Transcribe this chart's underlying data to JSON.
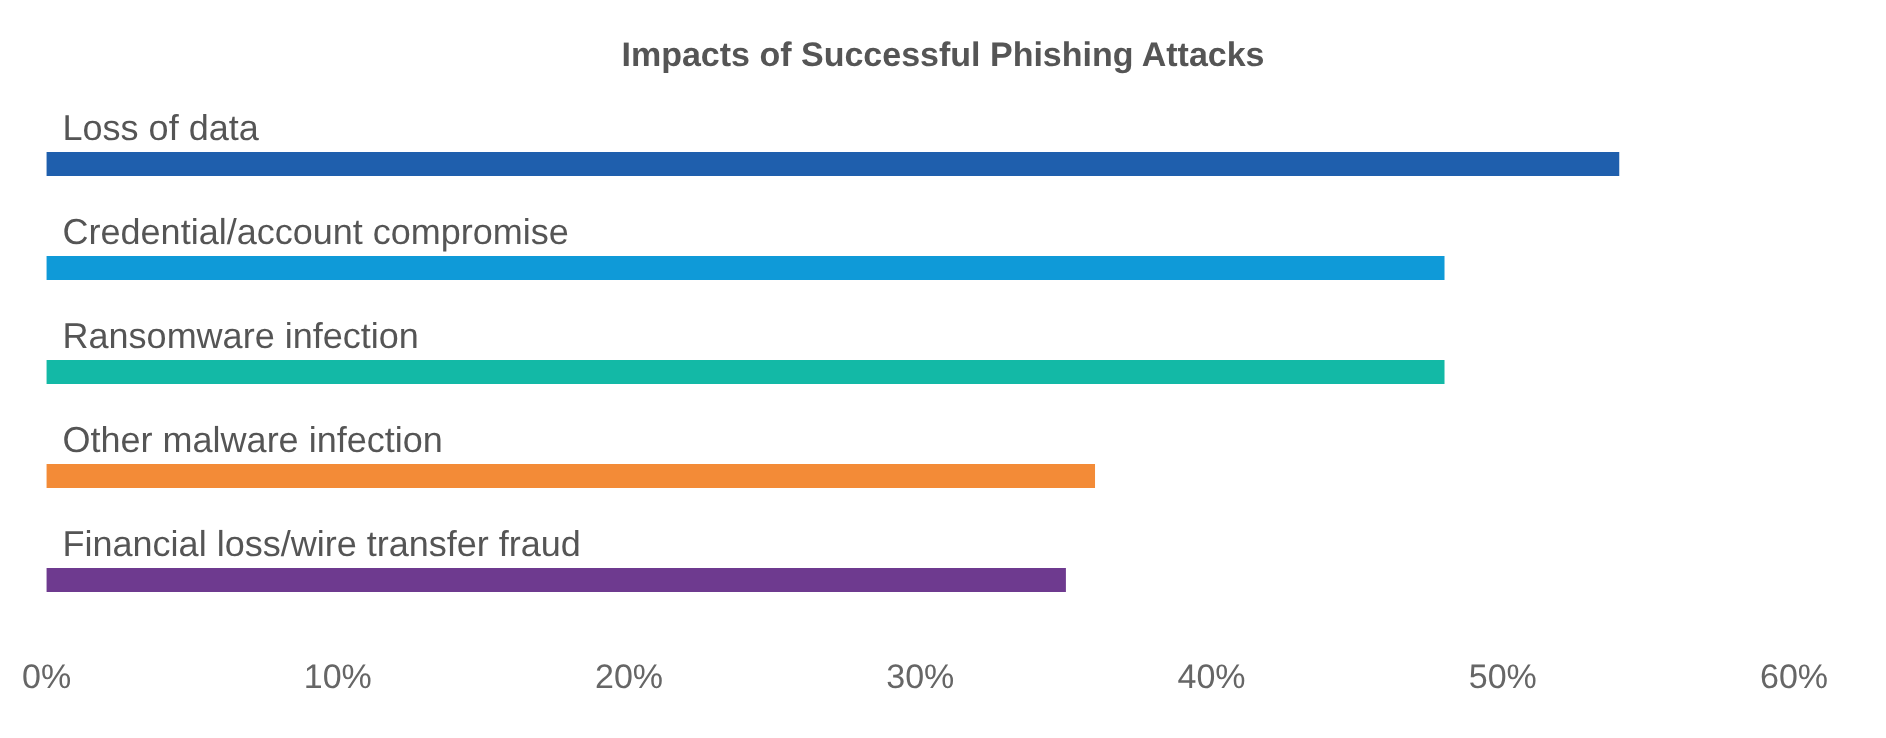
{
  "chart_data": {
    "type": "bar",
    "orientation": "horizontal",
    "title": "Impacts of Successful Phishing Attacks",
    "categories": [
      "Loss of data",
      "Credential/account compromise",
      "Ransomware infection",
      "Other malware infection",
      "Financial loss/wire transfer fraud"
    ],
    "values": [
      54,
      48,
      48,
      36,
      35
    ],
    "colors": [
      "#1f5fad",
      "#0f9ad8",
      "#13b9a6",
      "#f38b37",
      "#6e3a8f"
    ],
    "xlim": [
      0,
      60
    ],
    "xticks": [
      {
        "value": 0,
        "label": "0%"
      },
      {
        "value": 10,
        "label": "10%"
      },
      {
        "value": 20,
        "label": "20%"
      },
      {
        "value": 30,
        "label": "30%"
      },
      {
        "value": 40,
        "label": "40%"
      },
      {
        "value": 50,
        "label": "50%"
      },
      {
        "value": 60,
        "label": "60%"
      }
    ],
    "grid": false
  }
}
